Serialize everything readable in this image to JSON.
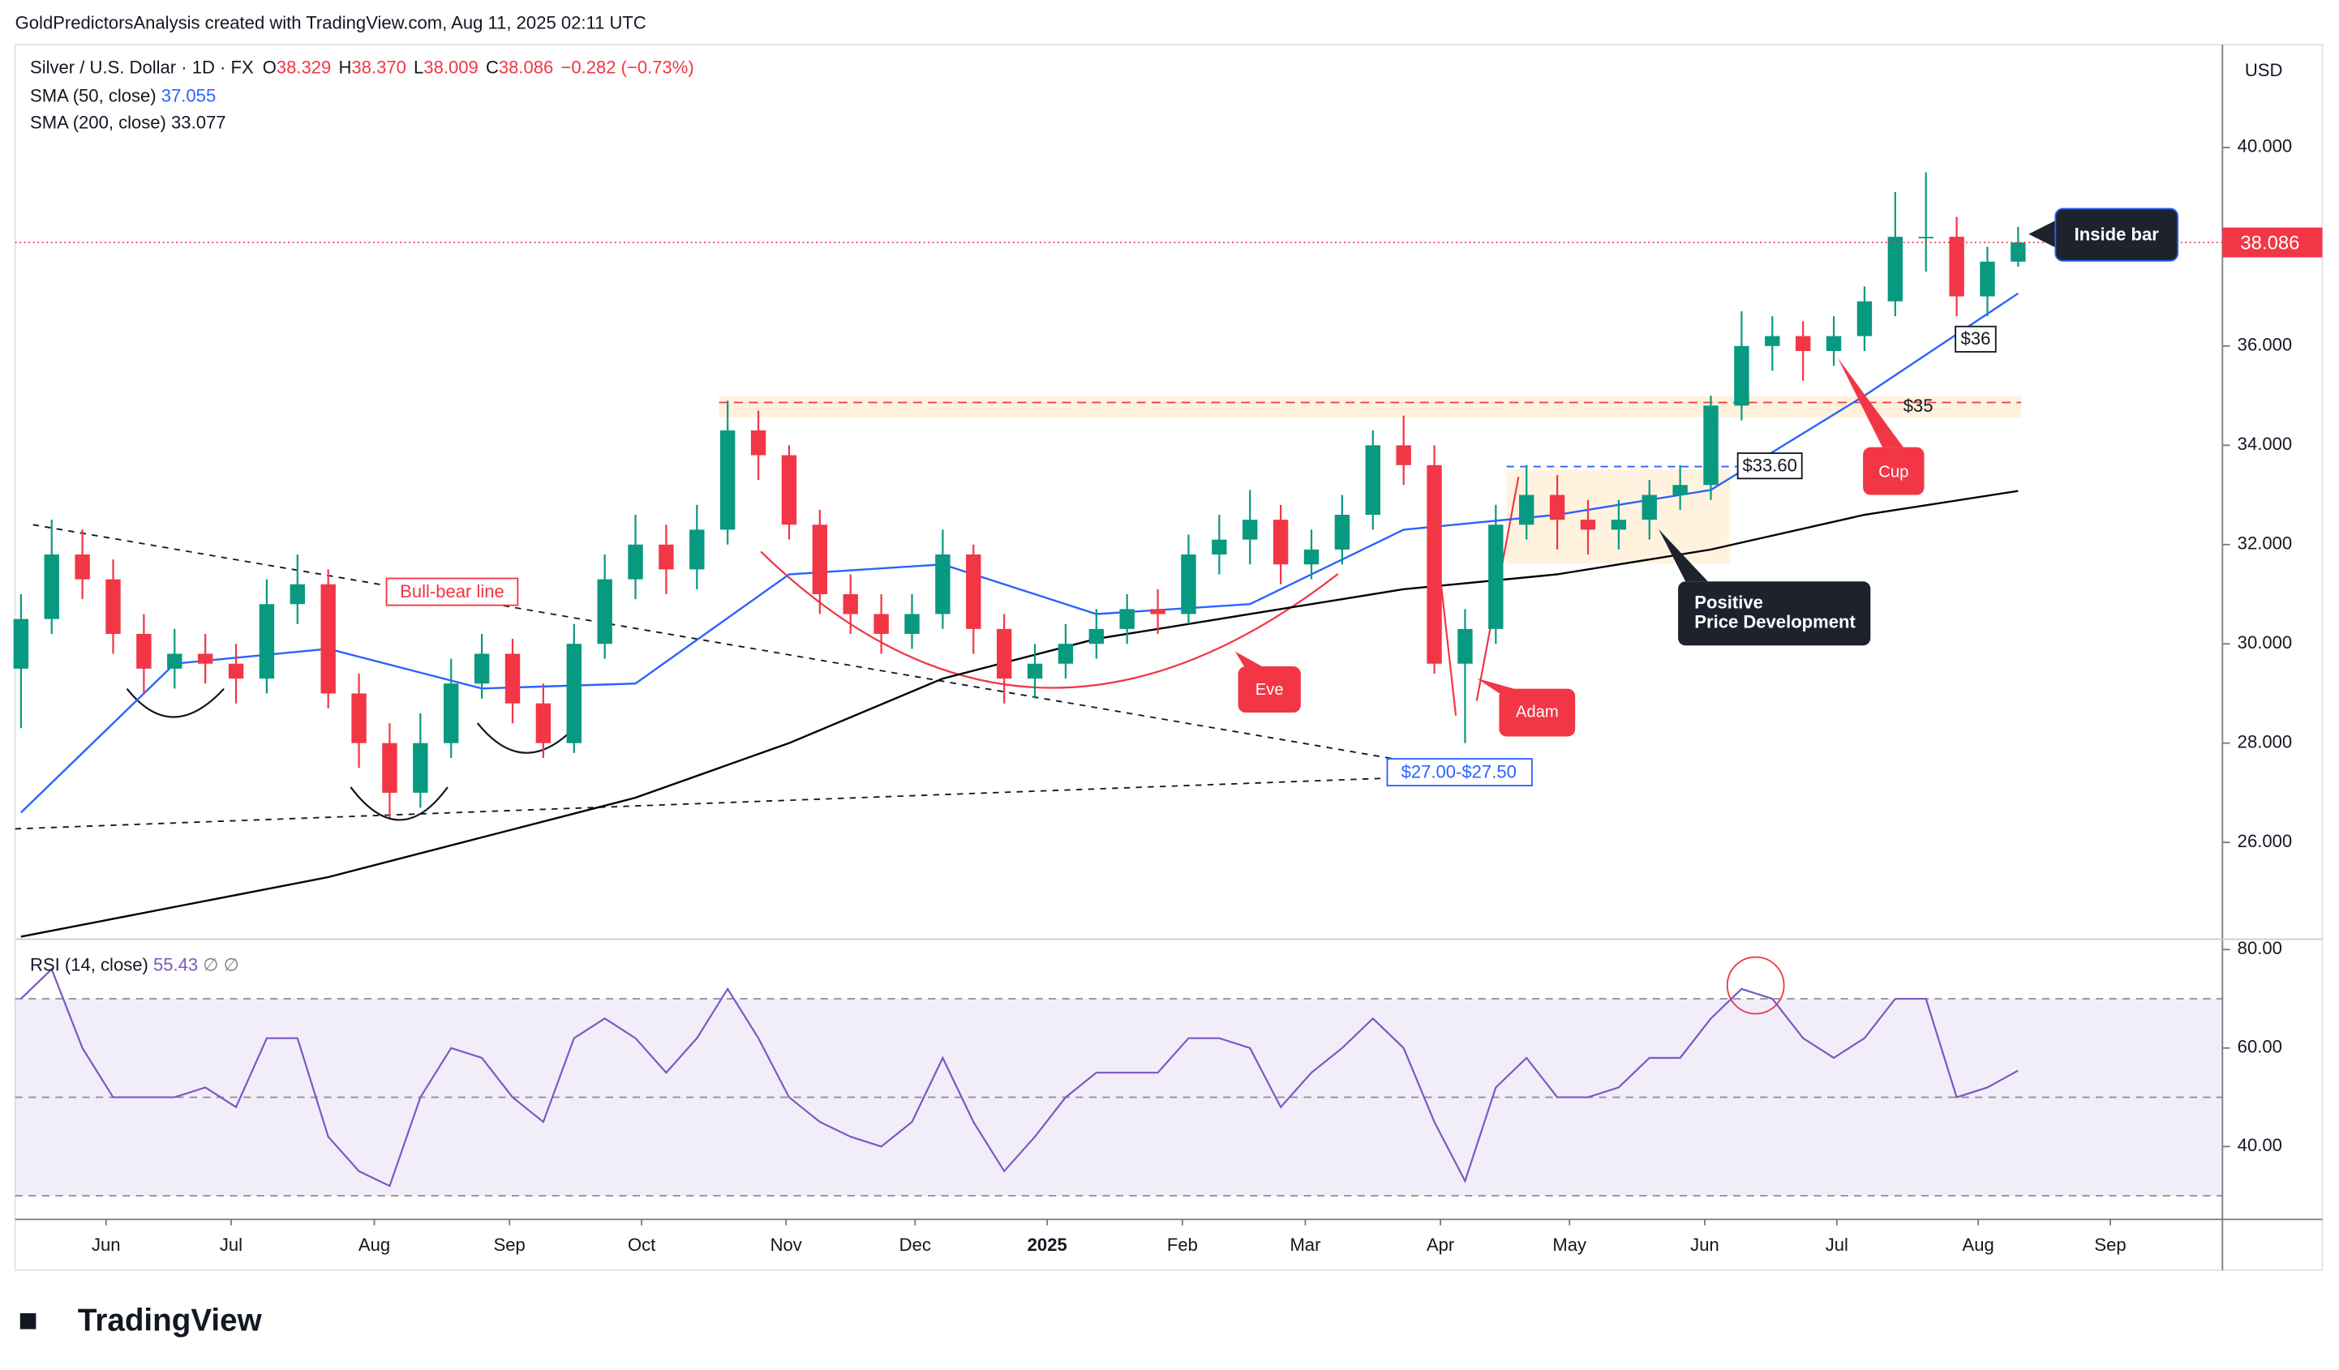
{
  "credit": "GoldPredictorsAnalysis created with TradingView.com, Aug 11, 2025 02:11 UTC",
  "brand": "TradingView",
  "chart_data": {
    "type": "candlestick",
    "title": "Silver / U.S. Dollar · 1D · FX",
    "ohlc_labels": [
      "O",
      "H",
      "L",
      "C"
    ],
    "ohlc": [
      "38.329",
      "38.370",
      "38.009",
      "38.086"
    ],
    "change": "−0.282 (−0.73%)",
    "currency": "USD",
    "up_color": "#089981",
    "down_color": "#f23645",
    "open": [
      29.5,
      30.5,
      31.8,
      31.3,
      30.2,
      29.5,
      29.8,
      29.6,
      29.3,
      30.8,
      31.2,
      29.0,
      28.0,
      27.0,
      28.0,
      29.2,
      29.8,
      28.8,
      28.0,
      30.0,
      31.3,
      32.0,
      31.5,
      32.3,
      34.3,
      33.8,
      32.4,
      31.0,
      30.6,
      30.2,
      30.6,
      31.8,
      30.3,
      29.3,
      29.6,
      30.0,
      30.3,
      30.7,
      30.6,
      31.8,
      32.1,
      32.5,
      31.6,
      31.9,
      32.6,
      34.0,
      33.6,
      29.6,
      30.3,
      32.4,
      33.0,
      32.5,
      32.3,
      32.5,
      33.0,
      33.2,
      34.8,
      36.0,
      36.2,
      35.9,
      36.2,
      36.9,
      38.2,
      38.2,
      37.0,
      37.7
    ],
    "high": [
      31.0,
      32.5,
      32.3,
      31.7,
      30.6,
      30.3,
      30.2,
      30.0,
      31.3,
      31.8,
      31.5,
      29.4,
      28.4,
      28.6,
      29.7,
      30.2,
      30.1,
      29.2,
      30.4,
      31.8,
      32.6,
      32.4,
      32.8,
      34.9,
      34.7,
      34.0,
      32.7,
      31.4,
      31.0,
      31.0,
      32.3,
      32.0,
      30.6,
      30.0,
      30.4,
      30.7,
      31.0,
      31.1,
      32.2,
      32.6,
      33.1,
      32.8,
      32.3,
      33.0,
      34.3,
      34.6,
      34.0,
      30.7,
      32.8,
      33.6,
      33.4,
      32.9,
      32.9,
      33.3,
      33.6,
      35.0,
      36.7,
      36.6,
      36.5,
      36.6,
      37.2,
      39.1,
      39.5,
      38.6,
      38.0,
      38.4
    ],
    "low": [
      28.3,
      30.2,
      30.9,
      29.8,
      29.0,
      29.1,
      29.2,
      28.8,
      29.0,
      30.4,
      28.7,
      27.5,
      26.5,
      26.7,
      27.7,
      28.9,
      28.4,
      27.7,
      27.8,
      29.7,
      30.9,
      31.0,
      31.1,
      32.0,
      33.3,
      32.1,
      30.6,
      30.2,
      29.8,
      29.9,
      30.3,
      29.8,
      28.8,
      28.9,
      29.3,
      29.7,
      30.0,
      30.2,
      30.4,
      31.4,
      31.6,
      31.2,
      31.3,
      31.6,
      32.3,
      33.2,
      29.4,
      28.0,
      30.0,
      32.1,
      31.9,
      31.8,
      31.9,
      32.1,
      32.7,
      32.9,
      34.5,
      35.5,
      35.3,
      35.6,
      35.9,
      36.6,
      37.5,
      36.6,
      36.6,
      37.6
    ],
    "close": [
      30.5,
      31.8,
      31.3,
      30.2,
      29.5,
      29.8,
      29.6,
      29.3,
      30.8,
      31.2,
      29.0,
      28.0,
      27.0,
      28.0,
      29.2,
      29.8,
      28.8,
      28.0,
      30.0,
      31.3,
      32.0,
      31.5,
      32.3,
      34.3,
      33.8,
      32.4,
      31.0,
      30.6,
      30.2,
      30.6,
      31.8,
      30.3,
      29.3,
      29.6,
      30.0,
      30.3,
      30.7,
      30.6,
      31.8,
      32.1,
      32.5,
      31.6,
      31.9,
      32.6,
      34.0,
      33.6,
      29.6,
      30.3,
      32.4,
      33.0,
      32.5,
      32.3,
      32.5,
      33.0,
      33.2,
      34.8,
      36.0,
      36.2,
      35.9,
      36.2,
      36.9,
      38.2,
      38.2,
      37.0,
      37.7,
      38.086
    ],
    "xlim": [
      -0.19,
      71.65
    ],
    "xticks": [
      {
        "value": 2.77,
        "label": "Jun"
      },
      {
        "value": 6.84,
        "label": "Jul"
      },
      {
        "value": 11.5,
        "label": "Aug"
      },
      {
        "value": 15.9,
        "label": "Sep"
      },
      {
        "value": 20.2,
        "label": "Oct"
      },
      {
        "value": 24.9,
        "label": "Nov"
      },
      {
        "value": 29.1,
        "label": "Dec"
      },
      {
        "value": 33.4,
        "label": "2025"
      },
      {
        "value": 37.8,
        "label": "Feb"
      },
      {
        "value": 41.8,
        "label": "Mar"
      },
      {
        "value": 46.2,
        "label": "Apr"
      },
      {
        "value": 50.4,
        "label": "May"
      },
      {
        "value": 54.8,
        "label": "Jun"
      },
      {
        "value": 59.1,
        "label": "Jul"
      },
      {
        "value": 63.7,
        "label": "Aug"
      },
      {
        "value": 68.0,
        "label": "Sep"
      }
    ],
    "ylim": [
      24.05,
      42.07
    ],
    "yticks": [
      {
        "value": 26,
        "label": "26.000"
      },
      {
        "value": 28,
        "label": "28.000"
      },
      {
        "value": 30,
        "label": "30.000"
      },
      {
        "value": 32,
        "label": "32.000"
      },
      {
        "value": 34,
        "label": "34.000"
      },
      {
        "value": 36,
        "label": "36.000"
      },
      {
        "value": 38,
        "label": "38.000"
      },
      {
        "value": 40,
        "label": "40.000"
      }
    ],
    "grid": false,
    "indicators": [
      {
        "name": "SMA (50, close)",
        "value_label": 37.055,
        "color": "#2962ff",
        "x": [
          0,
          5,
          10,
          15,
          20,
          25,
          30,
          35,
          40,
          45,
          50,
          55,
          60,
          65
        ],
        "values": [
          26.6,
          29.6,
          29.9,
          29.1,
          29.2,
          31.4,
          31.6,
          30.6,
          30.8,
          32.3,
          32.6,
          33.1,
          35.0,
          37.06
        ]
      },
      {
        "name": "SMA (200, close)",
        "value_label": 33.077,
        "color": "#000000",
        "x": [
          0,
          5,
          10,
          15,
          20,
          25,
          30,
          35,
          40,
          45,
          50,
          55,
          60,
          65
        ],
        "values": [
          24.1,
          24.7,
          25.3,
          26.1,
          26.9,
          28.0,
          29.3,
          30.1,
          30.6,
          31.1,
          31.4,
          31.9,
          32.6,
          33.08
        ]
      }
    ],
    "rsi": {
      "name": "RSI (14, close)",
      "value": 55.43,
      "extra": "∅ ∅",
      "color": "#7e57c2",
      "values": [
        70,
        76,
        60,
        50,
        50,
        50,
        52,
        48,
        62,
        62,
        42,
        35,
        32,
        50,
        60,
        58,
        50,
        45,
        62,
        66,
        62,
        55,
        62,
        72,
        62,
        50,
        45,
        42,
        40,
        45,
        58,
        45,
        35,
        42,
        50,
        55,
        55,
        55,
        62,
        62,
        60,
        48,
        55,
        60,
        66,
        60,
        45,
        33,
        52,
        58,
        50,
        50,
        52,
        58,
        58,
        66,
        72,
        70,
        62,
        58,
        62,
        70,
        70,
        50,
        52,
        55.43
      ],
      "ylim": [
        25.2,
        82.1
      ],
      "yticks": [
        {
          "value": 40,
          "label": "40.00"
        },
        {
          "value": 60,
          "label": "60.00"
        },
        {
          "value": 80,
          "label": "80.00"
        }
      ],
      "levels": [
        30,
        50,
        70
      ]
    },
    "annotations": {
      "bull_bear_line": "Bull-bear line",
      "support": "$27.00-$27.50",
      "level_35": "$35",
      "level_3360": "$33.60",
      "level_36": "$36",
      "inside_bar": "Inside bar",
      "cup": "Cup",
      "eve": "Eve",
      "adam": "Adam",
      "positive": [
        "Positive",
        "Price Development"
      ]
    }
  }
}
